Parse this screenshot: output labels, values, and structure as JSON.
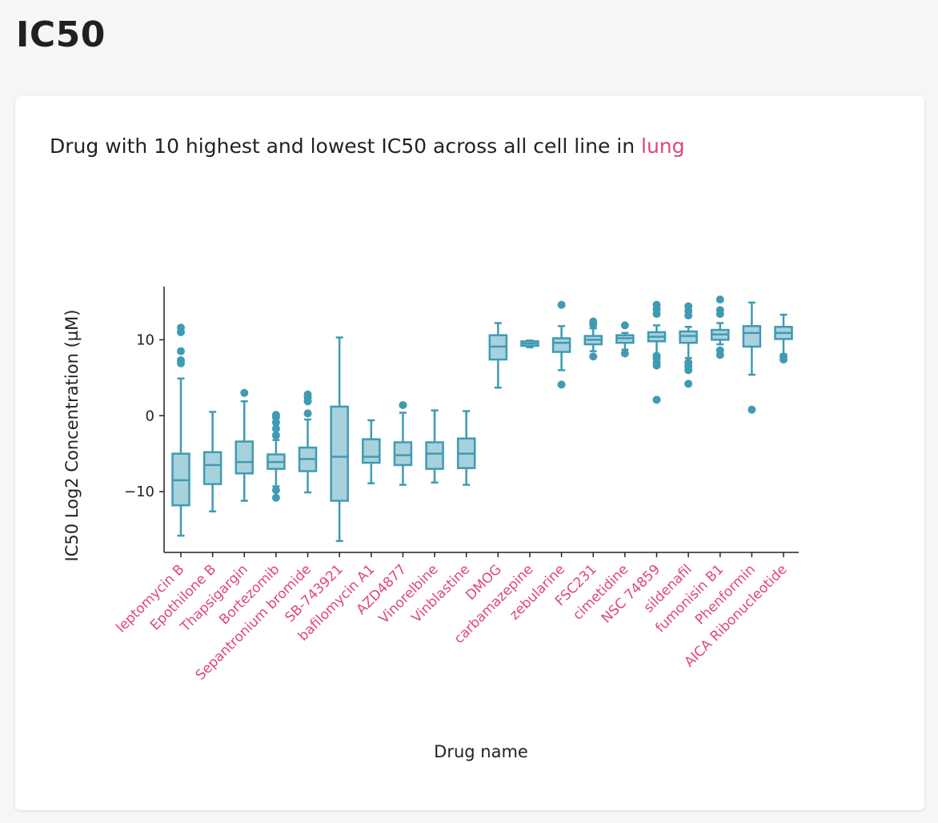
{
  "page": {
    "title": "IC50"
  },
  "card": {
    "heading_prefix": "Drug with 10 highest and lowest IC50 across all cell line in ",
    "heading_tissue": "lung"
  },
  "colors": {
    "box_fill": "#a8d1de",
    "box_stroke": "#3f9bb3",
    "outlier": "#3f9bb3",
    "tick_label": "#e0457b",
    "highlight": "#e0457b"
  },
  "chart_data": {
    "type": "box",
    "title": "",
    "xlabel": "Drug name",
    "ylabel": "IC50 Log2 Concentration (µM)",
    "ylim": [
      -18,
      17
    ],
    "yticks": [
      {
        "value": -10,
        "label": "−10"
      },
      {
        "value": 0,
        "label": "0"
      },
      {
        "value": 10,
        "label": "10"
      }
    ],
    "grid": false,
    "categories": [
      "leptomycin B",
      "Epothilone B",
      "Thapsigargin",
      "Bortezomib",
      "Sepantronium bromide",
      "SB-743921",
      "bafilomycin A1",
      "AZD4877",
      "Vinorelbine",
      "Vinblastine",
      "DMOG",
      "carbamazepine",
      "zebularine",
      "FSC231",
      "cimetidine",
      "NSC 74859",
      "sildenafil",
      "fumonisin B1",
      "Phenformin",
      "AICA Ribonucleotide"
    ],
    "boxes": [
      {
        "name": "leptomycin B",
        "lower_whisker": -15.8,
        "q1": -11.8,
        "median": -8.5,
        "q3": -5.0,
        "upper_whisker": 4.9,
        "outliers": [
          6.9,
          7.3,
          8.5,
          11.0,
          11.6
        ]
      },
      {
        "name": "Epothilone B",
        "lower_whisker": -12.6,
        "q1": -9.0,
        "median": -6.5,
        "q3": -4.8,
        "upper_whisker": 0.5,
        "outliers": []
      },
      {
        "name": "Thapsigargin",
        "lower_whisker": -11.2,
        "q1": -7.6,
        "median": -6.1,
        "q3": -3.4,
        "upper_whisker": 1.9,
        "outliers": [
          3.0
        ]
      },
      {
        "name": "Bortezomib",
        "lower_whisker": -9.3,
        "q1": -7.0,
        "median": -6.1,
        "q3": -5.1,
        "upper_whisker": -3.2,
        "outliers": [
          -10.8,
          -9.8,
          -2.6,
          -1.7,
          -0.9,
          -0.2,
          0.1
        ]
      },
      {
        "name": "Sepantronium bromide",
        "lower_whisker": -10.1,
        "q1": -7.3,
        "median": -5.7,
        "q3": -4.2,
        "upper_whisker": -0.5,
        "outliers": [
          0.3,
          1.9,
          2.4,
          2.8
        ]
      },
      {
        "name": "SB-743921",
        "lower_whisker": -16.5,
        "q1": -11.2,
        "median": -5.4,
        "q3": 1.2,
        "upper_whisker": 10.3,
        "outliers": []
      },
      {
        "name": "bafilomycin A1",
        "lower_whisker": -8.9,
        "q1": -6.2,
        "median": -5.4,
        "q3": -3.1,
        "upper_whisker": -0.6,
        "outliers": []
      },
      {
        "name": "AZD4877",
        "lower_whisker": -9.1,
        "q1": -6.5,
        "median": -5.2,
        "q3": -3.5,
        "upper_whisker": 0.4,
        "outliers": [
          1.4
        ]
      },
      {
        "name": "Vinorelbine",
        "lower_whisker": -8.8,
        "q1": -7.0,
        "median": -5.0,
        "q3": -3.5,
        "upper_whisker": 0.7,
        "outliers": []
      },
      {
        "name": "Vinblastine",
        "lower_whisker": -9.1,
        "q1": -6.9,
        "median": -5.0,
        "q3": -3.0,
        "upper_whisker": 0.6,
        "outliers": []
      },
      {
        "name": "DMOG",
        "lower_whisker": 3.7,
        "q1": 7.4,
        "median": 9.1,
        "q3": 10.6,
        "upper_whisker": 12.2,
        "outliers": []
      },
      {
        "name": "carbamazepine",
        "lower_whisker": 9.0,
        "q1": 9.2,
        "median": 9.5,
        "q3": 9.8,
        "upper_whisker": 9.9,
        "outliers": []
      },
      {
        "name": "zebularine",
        "lower_whisker": 6.0,
        "q1": 8.4,
        "median": 9.6,
        "q3": 10.2,
        "upper_whisker": 11.8,
        "outliers": [
          4.1,
          14.6
        ]
      },
      {
        "name": "FSC231",
        "lower_whisker": 8.5,
        "q1": 9.4,
        "median": 10.0,
        "q3": 10.5,
        "upper_whisker": 11.5,
        "outliers": [
          7.8,
          12.0,
          12.4
        ]
      },
      {
        "name": "cimetidine",
        "lower_whisker": 8.7,
        "q1": 9.6,
        "median": 10.2,
        "q3": 10.6,
        "upper_whisker": 10.9,
        "outliers": [
          8.2,
          11.9
        ]
      },
      {
        "name": "NSC 74859",
        "lower_whisker": 8.0,
        "q1": 9.8,
        "median": 10.4,
        "q3": 11.0,
        "upper_whisker": 11.9,
        "outliers": [
          2.1,
          6.6,
          7.0,
          7.5,
          7.9,
          13.4,
          14.0,
          14.6
        ]
      },
      {
        "name": "sildenafil",
        "lower_whisker": 7.6,
        "q1": 9.6,
        "median": 10.5,
        "q3": 11.1,
        "upper_whisker": 11.7,
        "outliers": [
          4.2,
          6.0,
          6.5,
          7.0,
          13.2,
          13.8,
          14.4
        ]
      },
      {
        "name": "fumonisin B1",
        "lower_whisker": 9.4,
        "q1": 10.0,
        "median": 10.7,
        "q3": 11.3,
        "upper_whisker": 12.2,
        "outliers": [
          8.0,
          8.6,
          13.4,
          13.9,
          15.3
        ]
      },
      {
        "name": "Phenformin",
        "lower_whisker": 5.4,
        "q1": 9.1,
        "median": 10.9,
        "q3": 11.8,
        "upper_whisker": 14.9,
        "outliers": [
          0.8
        ]
      },
      {
        "name": "AICA Ribonucleotide",
        "lower_whisker": 8.1,
        "q1": 10.1,
        "median": 10.9,
        "q3": 11.7,
        "upper_whisker": 13.3,
        "outliers": [
          7.4,
          7.8
        ]
      }
    ]
  }
}
